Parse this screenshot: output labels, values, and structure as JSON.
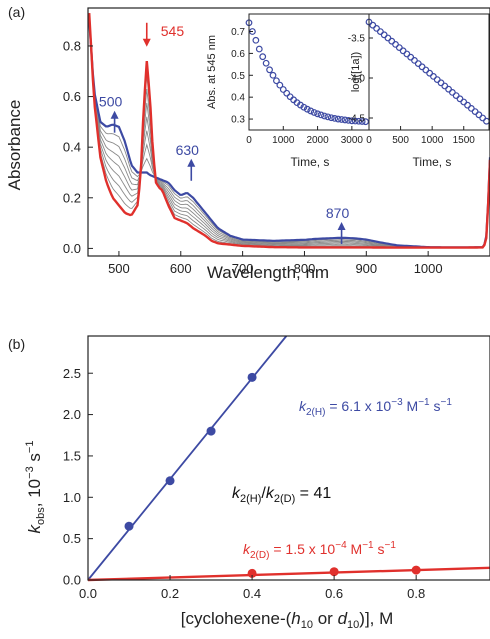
{
  "chart_data": [
    {
      "type": "line",
      "panel_label": "(a)",
      "xlabel": "Wavelength, nm",
      "ylabel": "Absorbance",
      "xlim": [
        450,
        1100
      ],
      "ylim": [
        -0.03,
        0.95
      ],
      "xticks": [
        500,
        600,
        700,
        800,
        900,
        1000
      ],
      "yticks": [
        0.0,
        0.2,
        0.4,
        0.6,
        0.8
      ],
      "tick_labels_x": [
        "500",
        "600",
        "700",
        "800",
        "900",
        "1000"
      ],
      "tick_labels_y": [
        "0.0",
        "0.2",
        "0.4",
        "0.6",
        "0.8"
      ],
      "series": [
        {
          "role": "initial",
          "color": "#e0302c",
          "x": [
            452,
            460,
            470,
            480,
            490,
            500,
            510,
            520,
            530,
            535,
            540,
            545,
            550,
            555,
            560,
            565,
            570,
            580,
            590,
            600,
            610,
            620,
            630,
            640,
            650,
            660,
            680,
            700,
            750,
            800,
            850,
            900,
            950,
            1000,
            1050,
            1090,
            1095,
            1100
          ],
          "y": [
            0.93,
            0.58,
            0.36,
            0.26,
            0.2,
            0.17,
            0.14,
            0.13,
            0.17,
            0.28,
            0.55,
            0.74,
            0.6,
            0.38,
            0.26,
            0.24,
            0.23,
            0.17,
            0.12,
            0.11,
            0.1,
            0.08,
            0.065,
            0.05,
            0.03,
            0.02,
            0.015,
            0.01,
            0.005,
            0.004,
            0.004,
            0.004,
            0.003,
            0.003,
            0.003,
            0.004,
            0.05,
            0.35
          ]
        },
        {
          "role": "final",
          "color": "#3d4aa3",
          "x": [
            452,
            460,
            470,
            480,
            490,
            500,
            510,
            520,
            530,
            540,
            545,
            550,
            560,
            570,
            580,
            590,
            600,
            610,
            620,
            630,
            640,
            650,
            660,
            680,
            700,
            750,
            800,
            820,
            840,
            860,
            880,
            900,
            920,
            950,
            1000,
            1050,
            1090,
            1095,
            1100
          ],
          "y": [
            0.9,
            0.62,
            0.5,
            0.48,
            0.49,
            0.48,
            0.42,
            0.33,
            0.3,
            0.3,
            0.3,
            0.29,
            0.28,
            0.27,
            0.26,
            0.23,
            0.21,
            0.22,
            0.2,
            0.17,
            0.14,
            0.11,
            0.08,
            0.05,
            0.035,
            0.03,
            0.034,
            0.038,
            0.04,
            0.042,
            0.04,
            0.035,
            0.025,
            0.012,
            0.005,
            0.004,
            0.005,
            0.06,
            0.36
          ]
        }
      ],
      "intermediate_traces": 7,
      "intermediate_color": "#8a8a8a",
      "annotations": [
        {
          "text": "545",
          "x": 545,
          "y": 0.86,
          "color": "#e0302c",
          "arrow": "down"
        },
        {
          "text": "500",
          "x": 493,
          "y": 0.56,
          "color": "#3d4aa3",
          "arrow": "up"
        },
        {
          "text": "630",
          "x": 617,
          "y": 0.37,
          "color": "#3d4aa3",
          "arrow": "up"
        },
        {
          "text": "870",
          "x": 860,
          "y": 0.12,
          "color": "#3d4aa3",
          "arrow": "up"
        }
      ]
    },
    {
      "type": "scatter",
      "panel": "inset-1",
      "xlabel": "Time, s",
      "ylabel": "Abs. at 545 nm",
      "xlim": [
        0,
        3500
      ],
      "ylim": [
        0.25,
        0.78
      ],
      "xticks": [
        0,
        1000,
        2000,
        3000
      ],
      "yticks": [
        0.3,
        0.4,
        0.5,
        0.6,
        0.7
      ],
      "tick_labels_x": [
        "0",
        "1000",
        "2000",
        "3000"
      ],
      "tick_labels_y": [
        "0.3",
        "0.4",
        "0.5",
        "0.6",
        "0.7"
      ],
      "color": "#3d4aa3",
      "x": [
        0,
        100,
        200,
        300,
        400,
        500,
        600,
        700,
        800,
        900,
        1000,
        1100,
        1200,
        1300,
        1400,
        1500,
        1600,
        1700,
        1800,
        1900,
        2000,
        2100,
        2200,
        2300,
        2400,
        2500,
        2600,
        2700,
        2800,
        2900,
        3000,
        3100,
        3200,
        3300,
        3400
      ],
      "y": [
        0.74,
        0.7,
        0.66,
        0.62,
        0.585,
        0.555,
        0.525,
        0.5,
        0.475,
        0.455,
        0.435,
        0.418,
        0.402,
        0.388,
        0.375,
        0.364,
        0.354,
        0.345,
        0.337,
        0.33,
        0.324,
        0.319,
        0.314,
        0.31,
        0.306,
        0.303,
        0.3,
        0.298,
        0.296,
        0.294,
        0.292,
        0.291,
        0.29,
        0.289,
        0.288
      ]
    },
    {
      "type": "scatter",
      "panel": "inset-2",
      "xlabel": "Time, s",
      "ylabel": "log([1a])",
      "xlim": [
        0,
        1900
      ],
      "ylim": [
        -4.65,
        -3.2
      ],
      "xticks": [
        0,
        500,
        1000,
        1500
      ],
      "yticks": [
        -4.5,
        -4.0,
        -3.5
      ],
      "tick_labels_x": [
        "0",
        "500",
        "1000",
        "1500"
      ],
      "tick_labels_y": [
        "-4.5",
        "-4.0",
        "-3.5"
      ],
      "color": "#3d4aa3",
      "x": [
        0,
        60,
        120,
        180,
        240,
        300,
        360,
        420,
        480,
        540,
        600,
        660,
        720,
        780,
        840,
        900,
        960,
        1020,
        1080,
        1140,
        1200,
        1260,
        1320,
        1380,
        1440,
        1500,
        1560,
        1620,
        1680,
        1740,
        1800,
        1860
      ],
      "y": [
        -3.3,
        -3.34,
        -3.38,
        -3.42,
        -3.46,
        -3.5,
        -3.54,
        -3.58,
        -3.62,
        -3.66,
        -3.7,
        -3.74,
        -3.78,
        -3.82,
        -3.86,
        -3.9,
        -3.94,
        -3.98,
        -4.02,
        -4.06,
        -4.1,
        -4.14,
        -4.18,
        -4.22,
        -4.26,
        -4.3,
        -4.34,
        -4.38,
        -4.42,
        -4.46,
        -4.5,
        -4.54
      ]
    },
    {
      "type": "scatter",
      "panel_label": "(b)",
      "xlabel_parts": [
        "[cyclohexene-(",
        "h",
        "10",
        " or ",
        "d",
        "10",
        ")], M"
      ],
      "ylabel_parts": [
        "k",
        "obs",
        ", 10",
        "−3",
        " s",
        "−1"
      ],
      "xlim": [
        0,
        0.98
      ],
      "ylim": [
        0,
        2.95
      ],
      "xticks": [
        0.0,
        0.2,
        0.4,
        0.6,
        0.8
      ],
      "yticks": [
        0.0,
        0.5,
        1.0,
        1.5,
        2.0,
        2.5
      ],
      "tick_labels_x": [
        "0.0",
        "0.2",
        "0.4",
        "0.6",
        "0.8"
      ],
      "tick_labels_y": [
        "0.0",
        "0.5",
        "1.0",
        "1.5",
        "2.0",
        "2.5"
      ],
      "series": [
        {
          "id": "H",
          "color": "#3d4aa3",
          "x": [
            0.1,
            0.2,
            0.3,
            0.4
          ],
          "y": [
            0.65,
            1.2,
            1.8,
            2.45
          ],
          "fit_slope": 6.1
        },
        {
          "id": "D",
          "color": "#e0302c",
          "x": [
            0.4,
            0.6,
            0.8
          ],
          "y": [
            0.08,
            0.1,
            0.12
          ],
          "fit_slope": 0.15
        }
      ],
      "annotations": {
        "kH": [
          "k",
          "2(H)",
          " = 6.1 x 10",
          "−3",
          " M",
          "−1",
          " s",
          "−1"
        ],
        "ratio": [
          "k",
          "2(H)",
          "/",
          "k",
          "2(D)",
          " = 41"
        ],
        "kD": [
          "k",
          "2(D)",
          " = 1.5 x 10",
          "−4",
          " M",
          "−1",
          " s",
          "−1"
        ]
      }
    }
  ]
}
